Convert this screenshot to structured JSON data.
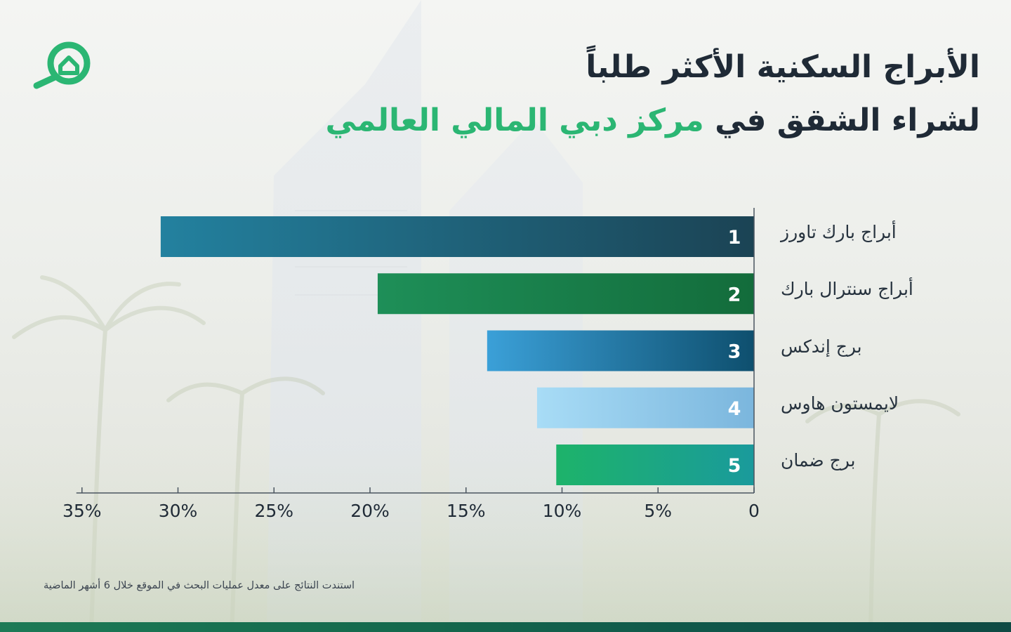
{
  "header": {
    "title_line1": "الأبراج السكنية الأكثر طلباً",
    "title_line2_prefix": "لشراء الشقق في",
    "title_line2_accent": "مركز دبي المالي العالمي"
  },
  "logo": {
    "icon": "house-magnifier-icon",
    "color": "#2bb673"
  },
  "chart_data": {
    "type": "bar",
    "orientation": "horizontal",
    "x_direction": "right-to-left",
    "categories": [
      "أبراج بارك تاورز",
      "أبراج سنترال بارك",
      "برج إندكس",
      "لايمستون هاوس",
      "برج ضمان"
    ],
    "ranks": [
      "1",
      "2",
      "3",
      "4",
      "5"
    ],
    "values": [
      30.9,
      19.6,
      13.9,
      11.3,
      10.3
    ],
    "xlim": [
      0,
      35
    ],
    "ticks": [
      0,
      5,
      10,
      15,
      20,
      25,
      30,
      35
    ],
    "tick_labels": [
      "0",
      "5%",
      "10%",
      "15%",
      "20%",
      "25%",
      "30%",
      "35%"
    ],
    "grid": false,
    "legend": "none",
    "bar_colors": [
      [
        "#23819f",
        "#1b4354"
      ],
      [
        "#1e8f58",
        "#136c3b"
      ],
      [
        "#3ba0d8",
        "#0e4f6e"
      ],
      [
        "#a8dcf6",
        "#7bb6dd"
      ],
      [
        "#1db36a",
        "#1a9a9c"
      ]
    ]
  },
  "footnote": "استندت النتائج على معدل عمليات البحث في الموقع خلال 6 أشهر الماضية"
}
